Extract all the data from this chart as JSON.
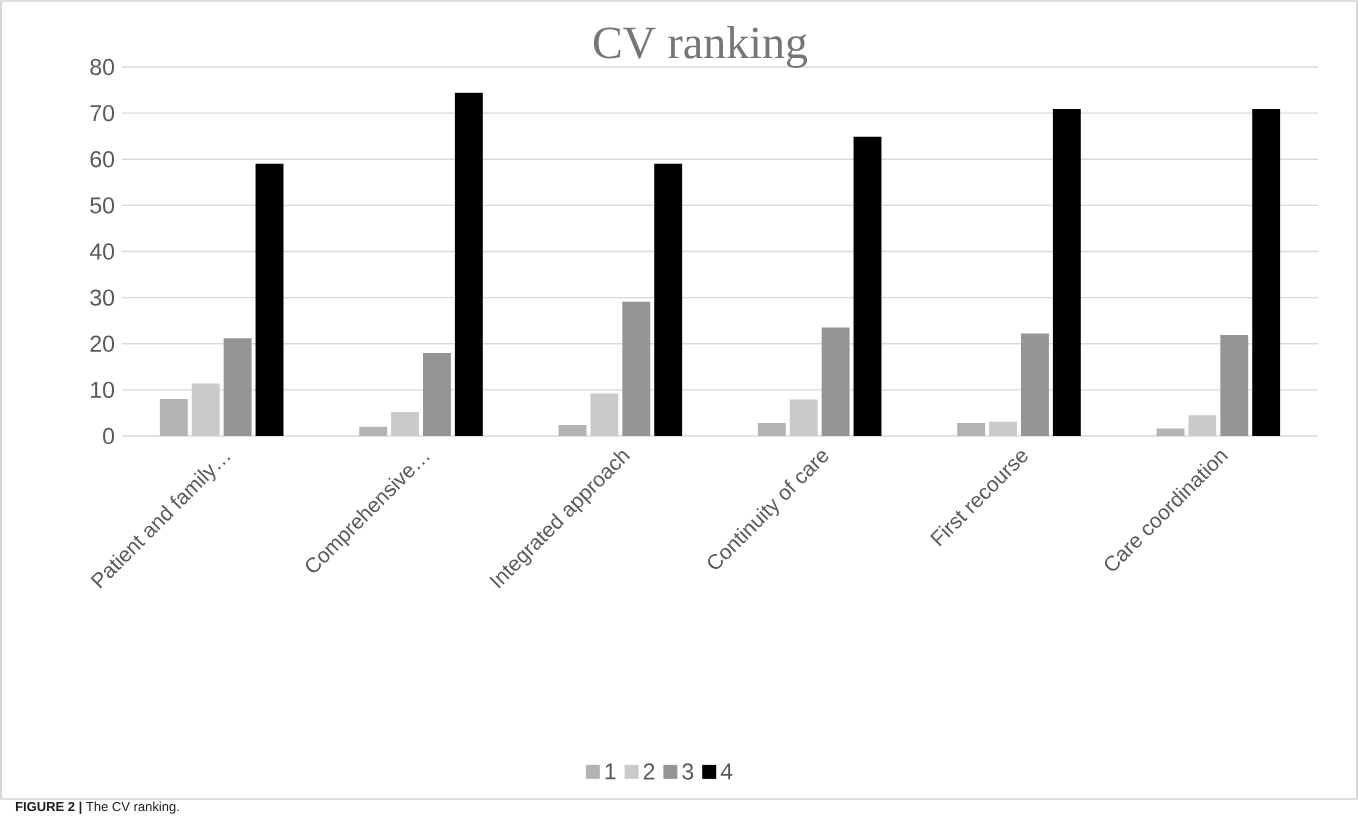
{
  "chart_data": {
    "type": "bar",
    "title": "CV ranking",
    "categories": [
      "Patient and family…",
      "Comprehensive…",
      "Integrated approach",
      "Continuity of care",
      "First recourse",
      "Care coordination"
    ],
    "series": [
      {
        "name": "1",
        "color": "#b3b3b3",
        "values": [
          8.0,
          2.0,
          2.4,
          2.8,
          2.8,
          1.6
        ]
      },
      {
        "name": "2",
        "color": "#cacaca",
        "values": [
          11.4,
          5.2,
          9.2,
          7.9,
          3.1,
          4.5
        ]
      },
      {
        "name": "3",
        "color": "#959595",
        "values": [
          21.2,
          18.0,
          29.1,
          23.5,
          22.2,
          21.9
        ]
      },
      {
        "name": "4",
        "color": "#000000",
        "values": [
          59.0,
          74.4,
          59.0,
          64.9,
          70.9,
          70.9
        ]
      }
    ],
    "ylim": [
      0,
      80
    ],
    "yticks": [
      0,
      10,
      20,
      30,
      40,
      50,
      60,
      70,
      80
    ],
    "grid": "y",
    "legend": "bottom",
    "annotations": [
      "**FIGURE 2 |** The CV ranking."
    ]
  }
}
